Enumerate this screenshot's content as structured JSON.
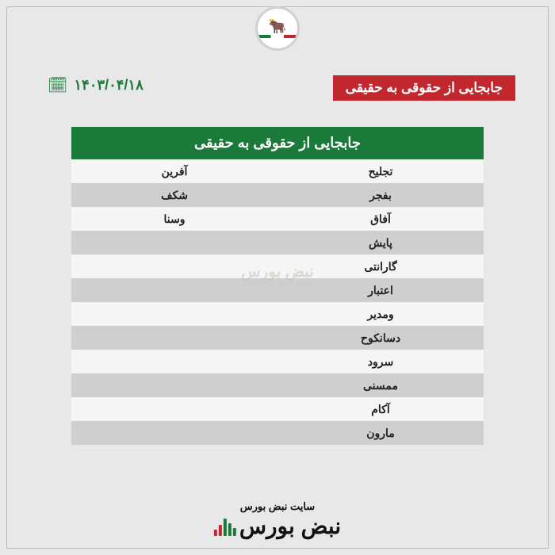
{
  "title": "جابجایی از حقوقی به حقیقی",
  "date": "۱۴۰۳/۰۴/۱۸",
  "table": {
    "header": "جابجایی از حقوقی به حقیقی",
    "rows": [
      {
        "c1": "تجلیح",
        "c2": "آفرین"
      },
      {
        "c1": "بفجر",
        "c2": "شکف"
      },
      {
        "c1": "آفاق",
        "c2": "وسنا"
      },
      {
        "c1": "پایش",
        "c2": ""
      },
      {
        "c1": "گارانتی",
        "c2": ""
      },
      {
        "c1": "اعتبار",
        "c2": ""
      },
      {
        "c1": "ومدیر",
        "c2": ""
      },
      {
        "c1": "دسانکوح",
        "c2": ""
      },
      {
        "c1": "سرود",
        "c2": ""
      },
      {
        "c1": "ممسنی",
        "c2": ""
      },
      {
        "c1": "آکام",
        "c2": ""
      },
      {
        "c1": "مارون",
        "c2": ""
      }
    ]
  },
  "watermark": {
    "line1": "نبض بورس",
    "line2": "nabzebourse.com"
  },
  "footer": {
    "small": "سایت نبض بورس",
    "big": "نبض بورس"
  },
  "colors": {
    "accent_red": "#c1272d",
    "accent_green": "#1a7a3a",
    "bg": "#e8e8e8",
    "row_light": "#f5f5f5",
    "row_dark": "#cfcfcf"
  }
}
